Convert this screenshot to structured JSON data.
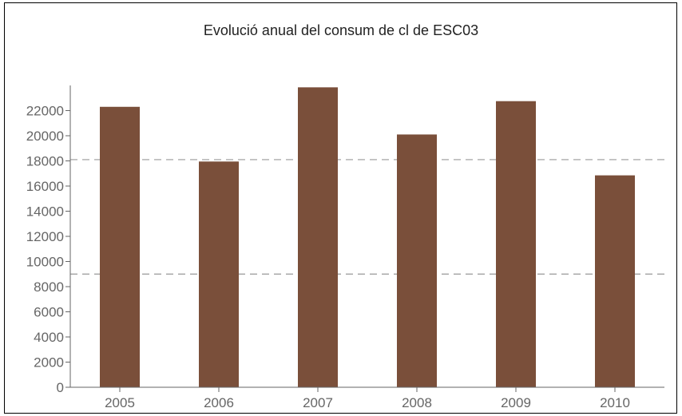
{
  "chart_data": {
    "type": "bar",
    "title": "Evolució anual del consum de cl de ESC03",
    "xlabel": "",
    "ylabel": "",
    "categories": [
      "2005",
      "2006",
      "2007",
      "2008",
      "2009",
      "2010"
    ],
    "values": [
      22300,
      17950,
      23850,
      20100,
      22750,
      16850
    ],
    "ylim": [
      0,
      24000
    ],
    "yticks": [
      0,
      2000,
      4000,
      6000,
      8000,
      10000,
      12000,
      14000,
      16000,
      18000,
      20000,
      22000
    ],
    "reference_lines": [
      9000,
      18100
    ],
    "grid": false,
    "legend": "none",
    "bar_color": "#7a4f3a",
    "axis_color": "#666666",
    "reference_line_color": "#999999"
  }
}
